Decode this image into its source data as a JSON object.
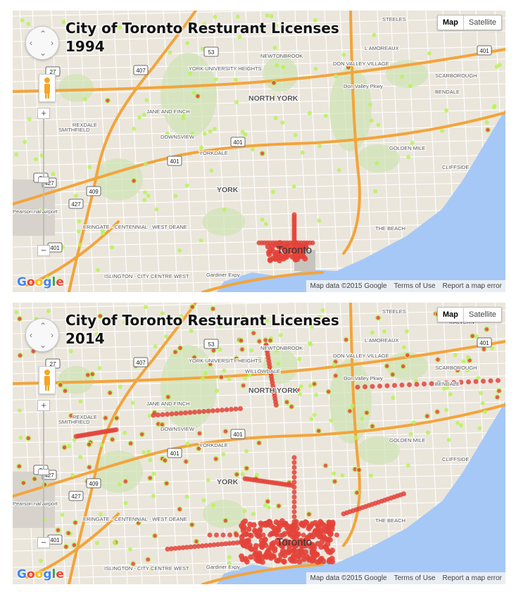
{
  "panels": [
    {
      "title": "City of Toronto Resturant Licenses",
      "year": "1994"
    },
    {
      "title": "City of Toronto Resturant Licenses",
      "year": "2014"
    }
  ],
  "controls": {
    "map_button": "Map",
    "satellite_button": "Satellite",
    "zoom_in": "+",
    "zoom_out": "−",
    "pan_icon": "pan-control-icon",
    "pegman_icon": "pegman-icon"
  },
  "logo": {
    "letters": [
      "G",
      "o",
      "o",
      "g",
      "l",
      "e"
    ],
    "colors": [
      "#4285f4",
      "#ea4335",
      "#fbbc05",
      "#4285f4",
      "#34a853",
      "#ea4335"
    ]
  },
  "attribution": {
    "map_data": "Map data ©2015 Google",
    "terms": "Terms of Use",
    "report": "Report a map error"
  },
  "place_labels": [
    "STEELES",
    "NEWTONBROOK",
    "L'AMOREAUX",
    "DON VALLEY VILLAGE",
    "SCARBOROUGH",
    "BENDALE",
    "YORK UNIVERSITY HEIGHTS",
    "NORTH YORK",
    "JANE AND FINCH",
    "SMITHFIELD",
    "REXDALE",
    "DOWNSVIEW",
    "YORKDALE",
    "GOLDEN MILE",
    "CLIFFSIDE",
    "YORK",
    "Toronto",
    "THE BEACH",
    "ERINGATE - CENTENNIAL - WEST DEANE",
    "ISLINGTON - CITY CENTRE WEST",
    "Pearson nal Airport",
    "Don Valley Pkwy",
    "Gardiner Expy",
    "WILLOWDALE",
    "MALVERN"
  ],
  "highway_shields": [
    "407",
    "53",
    "27",
    "401",
    "427",
    "409",
    "5"
  ],
  "colors": {
    "land": "#ebe6dc",
    "water": "#a6c8f6",
    "park": "#cfe3b4",
    "highway": "#f3a43b",
    "road": "#ffffff",
    "heat_low": "#b8f25a",
    "heat_high": "#e3433a"
  }
}
